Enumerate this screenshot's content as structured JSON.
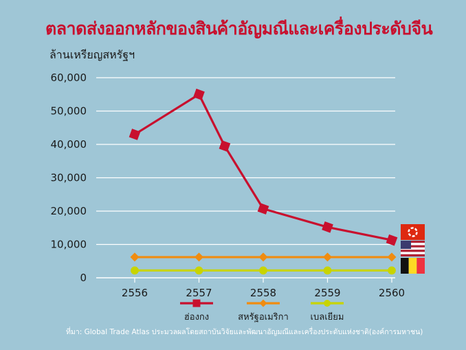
{
  "title": "ตลาดส่งออกหลักของสินค้าอัญมณีและเครื่องประดับจีน",
  "unit_label": "ล้านเหรียญสหรัฐฯ",
  "source": "ที่มา: Global Trade Atlas ประมวลผลโดยสถาบันวิจัยและพัฒนาอัญมณีและเครื่องประดับแห่งชาติ(องค์การมหาชน)",
  "flags": [
    "hong-kong-flag-icon",
    "usa-flag-icon",
    "belgium-flag-icon"
  ],
  "chart_data": {
    "type": "line",
    "title": "ตลาดส่งออกหลักของสินค้าอัญมณีและเครื่องประดับจีน",
    "ylabel": "ล้านเหรียญสหรัฐฯ",
    "xlabel": "",
    "x": [
      "2556",
      "2557",
      "2558",
      "2559",
      "2560"
    ],
    "ylim": [
      0,
      60000
    ],
    "yticks": [
      "0",
      "10,000",
      "20,000",
      "30,000",
      "40,000",
      "50,000",
      "60,000"
    ],
    "grid": true,
    "legend_position": "bottom",
    "series": [
      {
        "name": "ฮ่องกง",
        "color": "#c8102e",
        "marker": "square",
        "x": [
          2556,
          2557,
          2557.4,
          2558,
          2559,
          2560
        ],
        "values": [
          43000,
          55000,
          39500,
          20700,
          15200,
          11300
        ]
      },
      {
        "name": "สหรัฐอเมริกา",
        "color": "#f08c10",
        "marker": "diamond",
        "x": [
          2556,
          2557,
          2558,
          2559,
          2560
        ],
        "values": [
          6200,
          6200,
          6200,
          6200,
          6200
        ]
      },
      {
        "name": "เบลเยียม",
        "color": "#c8d400",
        "marker": "circle",
        "x": [
          2556,
          2557,
          2558,
          2559,
          2560
        ],
        "values": [
          2200,
          2200,
          2200,
          2200,
          2200
        ]
      }
    ]
  }
}
